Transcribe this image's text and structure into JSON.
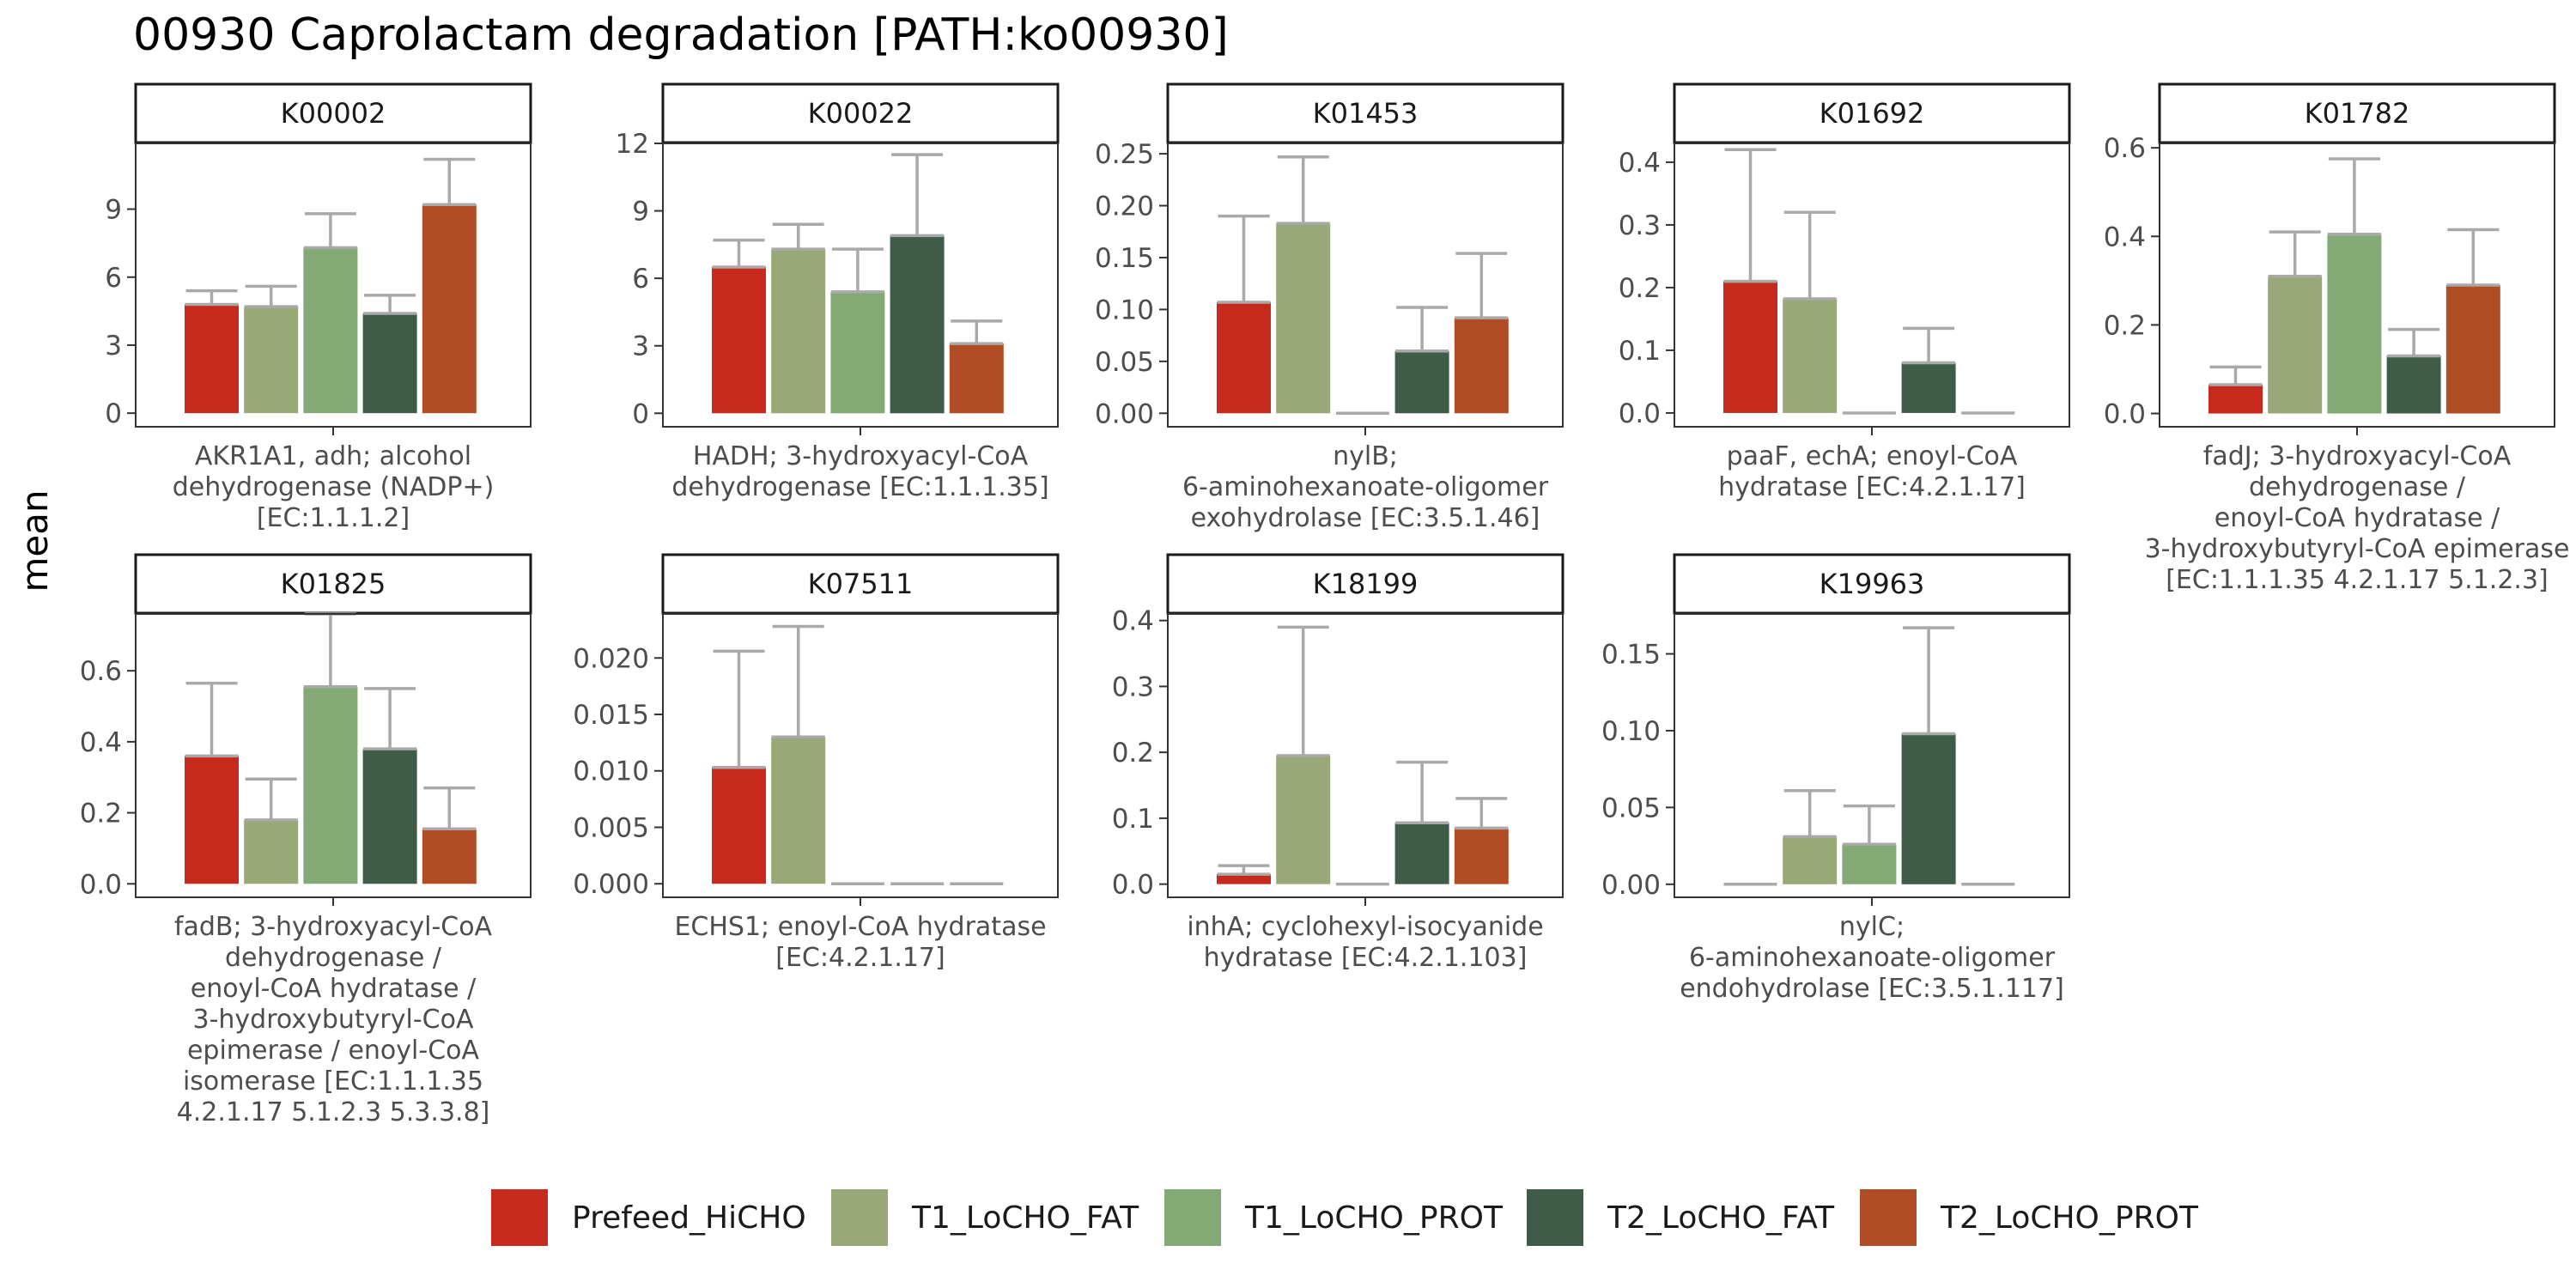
{
  "title": "00930 Caprolactam degradation [PATH:ko00930]",
  "chart_data": {
    "type": "bar",
    "ylabel": "mean",
    "series_names": [
      "Prefeed_HiCHO",
      "T1_LoCHO_FAT",
      "T1_LoCHO_PROT",
      "T2_LoCHO_FAT",
      "T2_LoCHO_PROT"
    ],
    "colors": [
      "#c52a1c",
      "#99a877",
      "#83aa74",
      "#3e5c47",
      "#b14d24"
    ],
    "error_bar_color": "#a9a9a9",
    "panels": [
      {
        "strip": "K00002",
        "category_lines": [
          "AKR1A1, adh; alcohol",
          "dehydrogenase (NADP+)",
          "[EC:1.1.1.2]"
        ],
        "ylim": [
          -0.6,
          11.9
        ],
        "ticks": [
          0,
          3,
          6,
          9
        ],
        "tick_labels": [
          "0",
          "3",
          "6",
          "9"
        ],
        "values": [
          4.8,
          4.7,
          7.3,
          4.4,
          9.2
        ],
        "errors": [
          5.4,
          5.6,
          8.8,
          5.2,
          11.2
        ]
      },
      {
        "strip": "K00022",
        "category_lines": [
          "HADH; 3-hydroxyacyl-CoA",
          "dehydrogenase [EC:1.1.1.35]"
        ],
        "ylim": [
          -0.6,
          12.0
        ],
        "ticks": [
          0,
          3,
          6,
          9,
          12
        ],
        "tick_labels": [
          "0",
          "3",
          "6",
          "9",
          "12"
        ],
        "values": [
          6.5,
          7.3,
          5.4,
          7.9,
          3.1
        ],
        "errors": [
          7.7,
          8.4,
          7.3,
          11.5,
          4.1
        ]
      },
      {
        "strip": "K01453",
        "category_lines": [
          "nylB;",
          "6-aminohexanoate-oligomer",
          "exohydrolase [EC:3.5.1.46]"
        ],
        "ylim": [
          -0.013,
          0.26
        ],
        "ticks": [
          0,
          0.05,
          0.1,
          0.15,
          0.2,
          0.25
        ],
        "tick_labels": [
          "0.00",
          "0.05",
          "0.10",
          "0.15",
          "0.20",
          "0.25"
        ],
        "values": [
          0.107,
          0.183,
          0.0,
          0.06,
          0.092
        ],
        "errors": [
          0.19,
          0.247,
          0.0,
          0.102,
          0.154
        ]
      },
      {
        "strip": "K01692",
        "category_lines": [
          "paaF, echA; enoyl-CoA",
          "hydratase [EC:4.2.1.17]"
        ],
        "ylim": [
          -0.022,
          0.43
        ],
        "ticks": [
          0,
          0.1,
          0.2,
          0.3,
          0.4
        ],
        "tick_labels": [
          "0.0",
          "0.1",
          "0.2",
          "0.3",
          "0.4"
        ],
        "values": [
          0.21,
          0.182,
          0.0,
          0.08,
          0.0
        ],
        "errors": [
          0.42,
          0.32,
          0.0,
          0.135,
          0.0
        ]
      },
      {
        "strip": "K01782",
        "category_lines": [
          "fadJ; 3-hydroxyacyl-CoA",
          "dehydrogenase /",
          "enoyl-CoA hydratase /",
          "3-hydroxybutyryl-CoA epimerase",
          "[EC:1.1.1.35 4.2.1.17 5.1.2.3]"
        ],
        "ylim": [
          -0.03,
          0.61
        ],
        "ticks": [
          0,
          0.2,
          0.4,
          0.6
        ],
        "tick_labels": [
          "0.0",
          "0.2",
          "0.4",
          "0.6"
        ],
        "values": [
          0.065,
          0.31,
          0.405,
          0.13,
          0.29
        ],
        "errors": [
          0.105,
          0.41,
          0.575,
          0.19,
          0.415
        ]
      },
      {
        "strip": "K01825",
        "category_lines": [
          "fadB; 3-hydroxyacyl-CoA",
          "dehydrogenase /",
          "enoyl-CoA hydratase /",
          "3-hydroxybutyryl-CoA",
          "epimerase / enoyl-CoA",
          "isomerase [EC:1.1.1.35",
          "4.2.1.17 5.1.2.3 5.3.3.8]"
        ],
        "ylim": [
          -0.038,
          0.76
        ],
        "ticks": [
          0,
          0.2,
          0.4,
          0.6
        ],
        "tick_labels": [
          "0.0",
          "0.2",
          "0.4",
          "0.6"
        ],
        "values": [
          0.36,
          0.18,
          0.555,
          0.38,
          0.155
        ],
        "errors": [
          0.565,
          0.295,
          0.76,
          0.55,
          0.27
        ]
      },
      {
        "strip": "K07511",
        "category_lines": [
          "ECHS1; enoyl-CoA hydratase",
          "[EC:4.2.1.17]"
        ],
        "ylim": [
          -0.0012,
          0.0239
        ],
        "ticks": [
          0,
          0.005,
          0.01,
          0.015,
          0.02
        ],
        "tick_labels": [
          "0.000",
          "0.005",
          "0.010",
          "0.015",
          "0.020"
        ],
        "values": [
          0.0103,
          0.013,
          0.0,
          0.0,
          0.0
        ],
        "errors": [
          0.0206,
          0.0228,
          0.0,
          0.0,
          0.0
        ]
      },
      {
        "strip": "K18199",
        "category_lines": [
          "inhA; cyclohexyl-isocyanide",
          "hydratase [EC:4.2.1.103]"
        ],
        "ylim": [
          -0.02,
          0.41
        ],
        "ticks": [
          0,
          0.1,
          0.2,
          0.3,
          0.4
        ],
        "tick_labels": [
          "0.0",
          "0.1",
          "0.2",
          "0.3",
          "0.4"
        ],
        "values": [
          0.015,
          0.195,
          0.0,
          0.093,
          0.085
        ],
        "errors": [
          0.028,
          0.39,
          0.0,
          0.185,
          0.13
        ]
      },
      {
        "strip": "K19963",
        "category_lines": [
          "nylC;",
          "6-aminohexanoate-oligomer",
          "endohydrolase [EC:3.5.1.117]"
        ],
        "ylim": [
          -0.0085,
          0.176
        ],
        "ticks": [
          0,
          0.05,
          0.1,
          0.15
        ],
        "tick_labels": [
          "0.00",
          "0.05",
          "0.10",
          "0.15"
        ],
        "values": [
          0.0,
          0.031,
          0.026,
          0.098,
          0.0
        ],
        "errors": [
          0.0,
          0.061,
          0.051,
          0.167,
          0.0
        ]
      }
    ]
  }
}
